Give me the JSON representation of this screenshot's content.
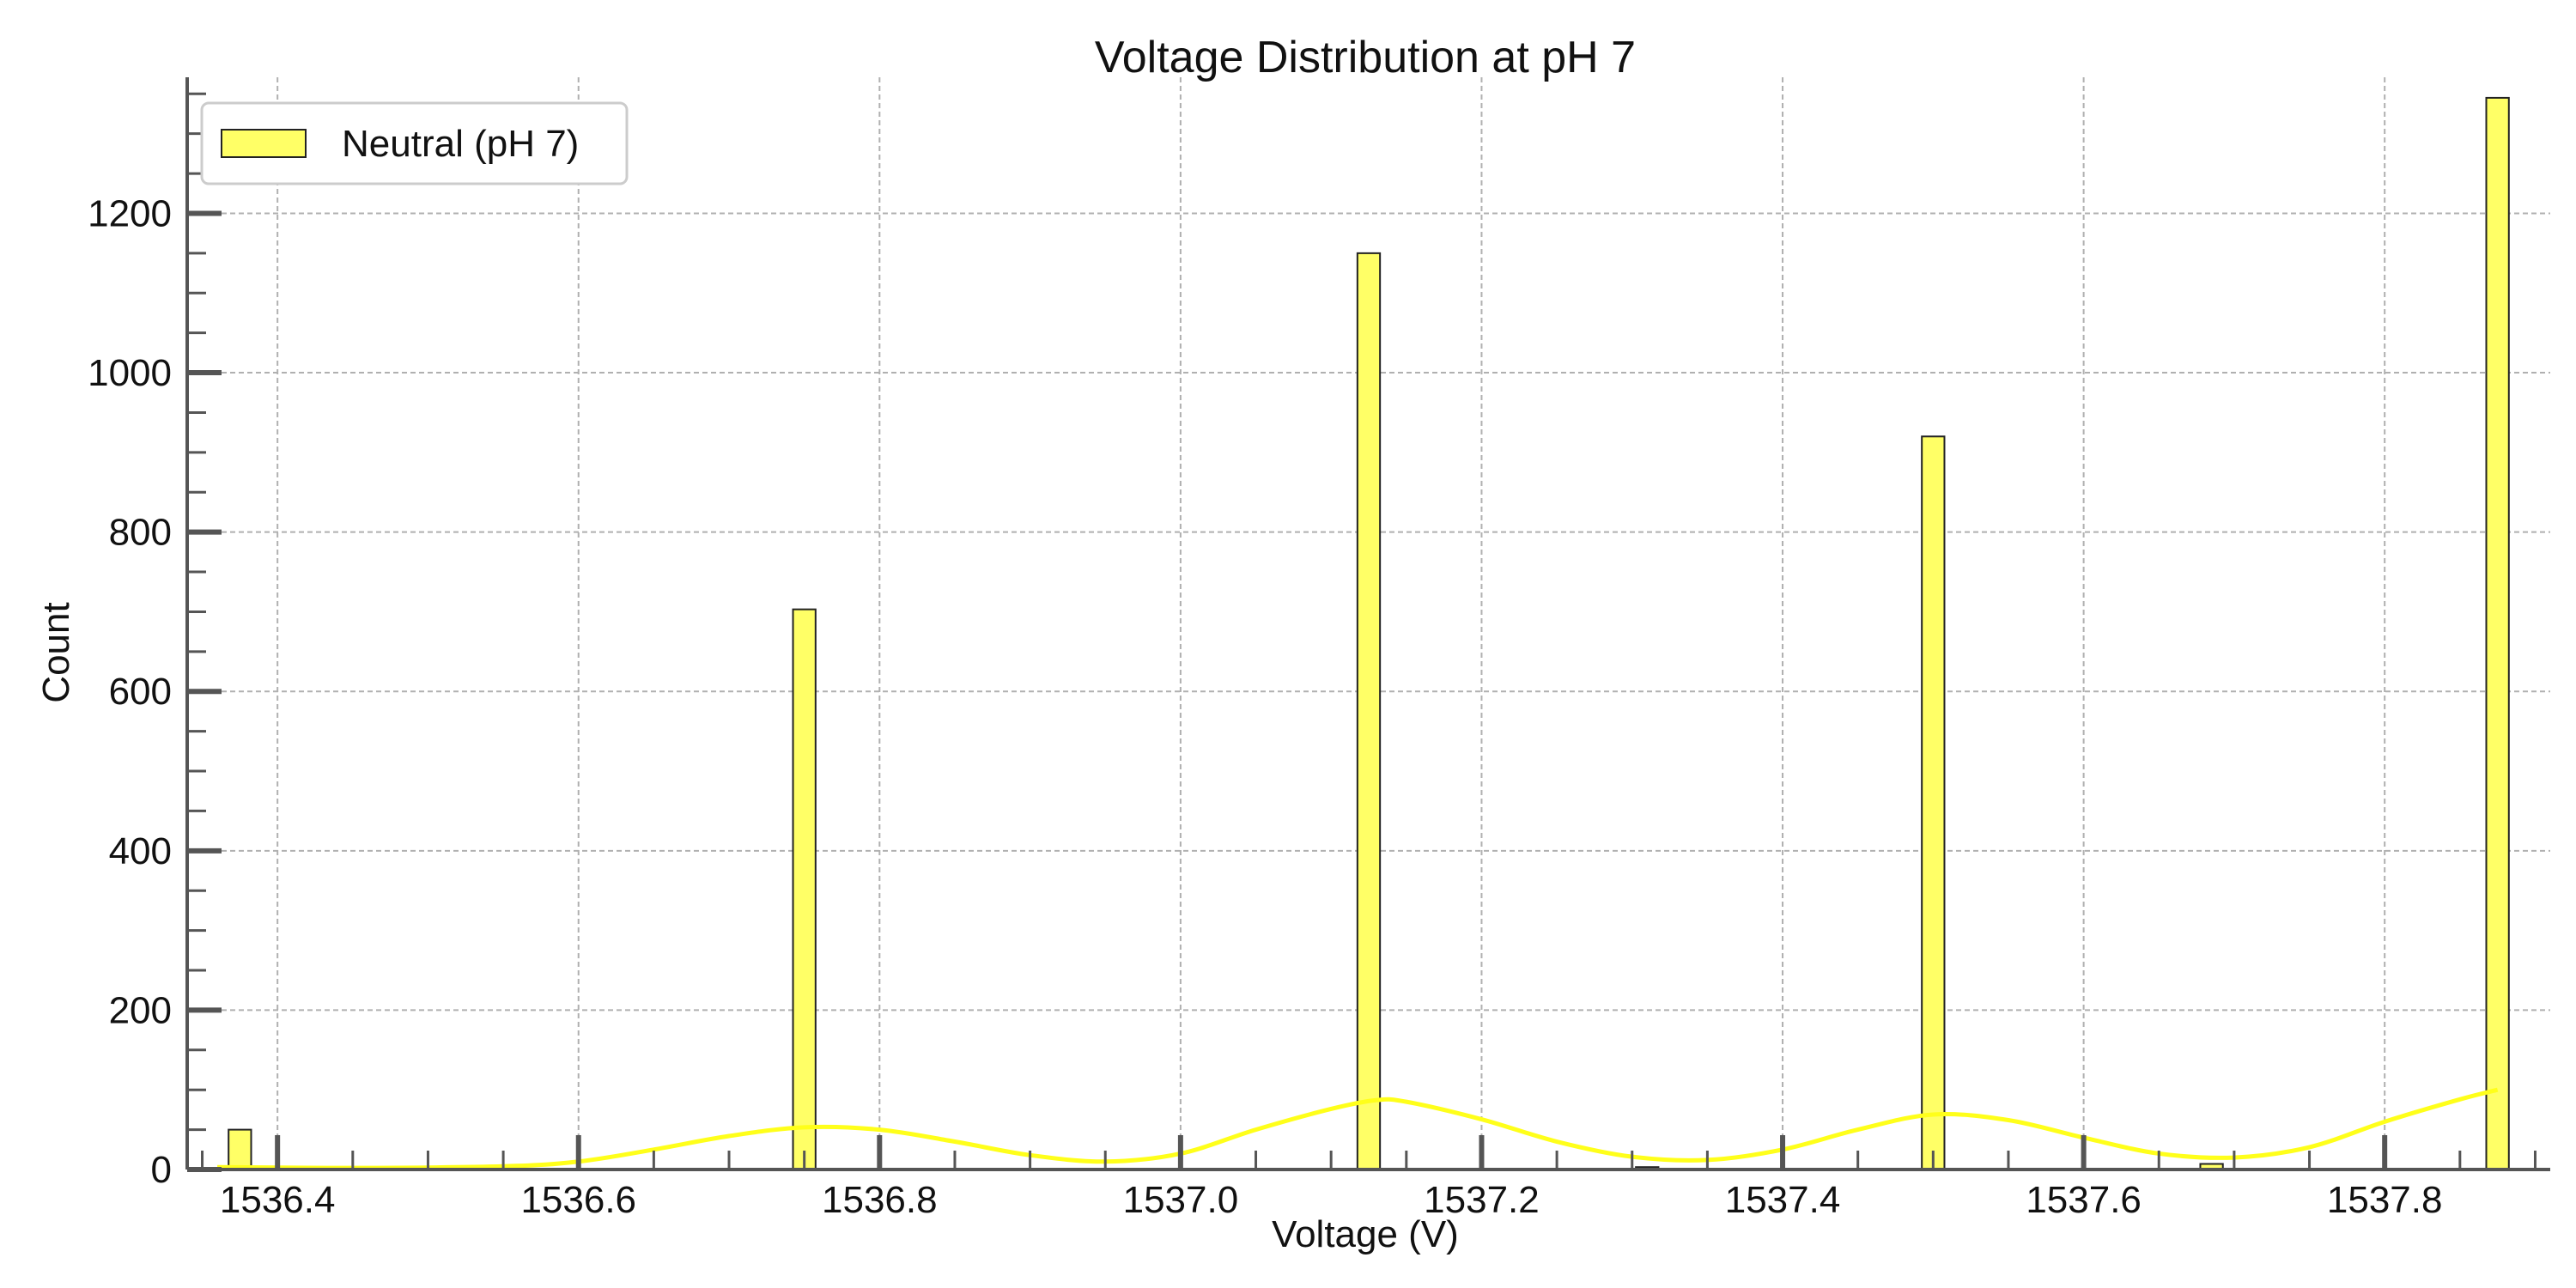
{
  "chart_data": {
    "type": "bar",
    "title": "Voltage Distribution at pH 7",
    "xlabel": "Voltage (V)",
    "ylabel": "Count",
    "xlim": [
      1536.34,
      1537.91
    ],
    "ylim": [
      0,
      1360
    ],
    "x_ticks": [
      1536.4,
      1536.6,
      1536.8,
      1537.0,
      1537.2,
      1537.4,
      1537.6,
      1537.8
    ],
    "x_tick_labels": [
      "1536.4",
      "1536.6",
      "1536.8",
      "1537.0",
      "1537.2",
      "1537.4",
      "1537.6",
      "1537.8"
    ],
    "y_ticks": [
      0,
      200,
      400,
      600,
      800,
      1000,
      1200
    ],
    "y_tick_labels": [
      "0",
      "200",
      "400",
      "600",
      "800",
      "1000",
      "1200"
    ],
    "grid": true,
    "legend_position": "top-left",
    "bar_color": "#ffff66",
    "bar_edge_color": "#222222",
    "kde_color": "#ffff1a",
    "bin_width": 0.015,
    "series": [
      {
        "name": "Neutral (pH 7)",
        "bins": [
          {
            "x": 1536.375,
            "count": 50
          },
          {
            "x": 1536.75,
            "count": 703
          },
          {
            "x": 1537.125,
            "count": 1150
          },
          {
            "x": 1537.31,
            "count": 3
          },
          {
            "x": 1537.5,
            "count": 920
          },
          {
            "x": 1537.685,
            "count": 7
          },
          {
            "x": 1537.875,
            "count": 1345
          }
        ]
      }
    ],
    "kde_curve": {
      "x": [
        1536.36,
        1536.45,
        1536.55,
        1536.6,
        1536.65,
        1536.7,
        1536.75,
        1536.8,
        1536.85,
        1536.9,
        1536.95,
        1537.0,
        1537.05,
        1537.1,
        1537.13,
        1537.15,
        1537.2,
        1537.25,
        1537.3,
        1537.35,
        1537.4,
        1537.45,
        1537.5,
        1537.55,
        1537.6,
        1537.65,
        1537.7,
        1537.75,
        1537.8,
        1537.85,
        1537.875
      ],
      "y": [
        3,
        2,
        4,
        10,
        25,
        42,
        53,
        50,
        35,
        18,
        10,
        20,
        50,
        76,
        87,
        85,
        63,
        35,
        16,
        12,
        25,
        50,
        69,
        62,
        40,
        20,
        15,
        28,
        60,
        88,
        100
      ]
    }
  }
}
